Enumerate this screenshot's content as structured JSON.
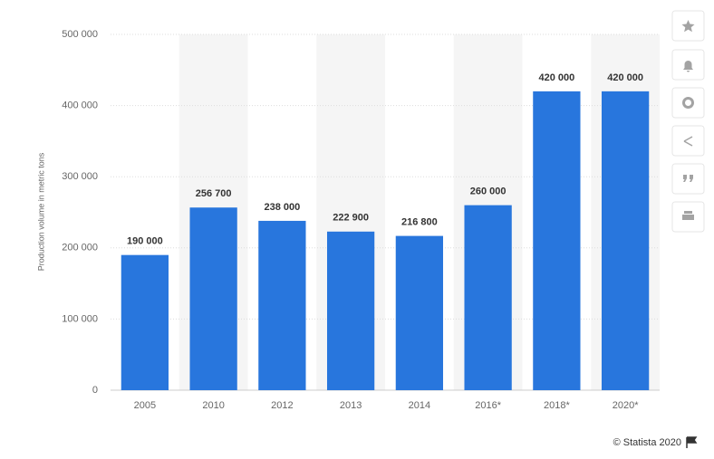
{
  "chart_data": {
    "type": "bar",
    "y_label": "Production volume in metric tons",
    "categories": [
      "2005",
      "2010",
      "2012",
      "2013",
      "2014",
      "2016*",
      "2018*",
      "2020*"
    ],
    "values": [
      190000,
      256700,
      238000,
      222900,
      216800,
      260000,
      420000,
      420000
    ],
    "value_labels": [
      "190 000",
      "256 700",
      "238 000",
      "222 900",
      "216 800",
      "260 000",
      "420 000",
      "420 000"
    ],
    "color": "#2876dd",
    "ylim": [
      0,
      500000
    ],
    "yticks": [
      0,
      {
        "value": 100000,
        "label": "100 000"
      },
      {
        "value": 200000,
        "label": "200 000"
      },
      {
        "value": 300000,
        "label": "300 000"
      },
      {
        "value": 400000,
        "label": "400 000"
      },
      {
        "value": 500000,
        "label": "500 000"
      }
    ],
    "grid": true,
    "credit": "© Statista 2020"
  }
}
